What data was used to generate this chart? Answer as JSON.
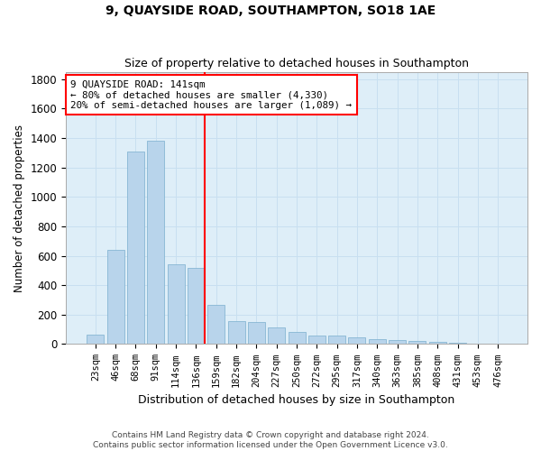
{
  "title": "9, QUAYSIDE ROAD, SOUTHAMPTON, SO18 1AE",
  "subtitle": "Size of property relative to detached houses in Southampton",
  "xlabel": "Distribution of detached houses by size in Southampton",
  "ylabel": "Number of detached properties",
  "categories": [
    "23sqm",
    "46sqm",
    "68sqm",
    "91sqm",
    "114sqm",
    "136sqm",
    "159sqm",
    "182sqm",
    "204sqm",
    "227sqm",
    "250sqm",
    "272sqm",
    "295sqm",
    "317sqm",
    "340sqm",
    "363sqm",
    "385sqm",
    "408sqm",
    "431sqm",
    "453sqm",
    "476sqm"
  ],
  "values": [
    62,
    640,
    1310,
    1380,
    540,
    520,
    265,
    155,
    150,
    115,
    80,
    60,
    55,
    45,
    35,
    25,
    20,
    18,
    10,
    5,
    5
  ],
  "bar_color": "#b8d4eb",
  "bar_edgecolor": "#7aaece",
  "grid_color": "#c8dff0",
  "bg_color": "#deeef8",
  "annotation_text": "9 QUAYSIDE ROAD: 141sqm\n← 80% of detached houses are smaller (4,330)\n20% of semi-detached houses are larger (1,089) →",
  "vline_bar_index": 5,
  "vline_right_edge": true,
  "ylim": [
    0,
    1850
  ],
  "yticks": [
    0,
    200,
    400,
    600,
    800,
    1000,
    1200,
    1400,
    1600,
    1800
  ],
  "footnote1": "Contains HM Land Registry data © Crown copyright and database right 2024.",
  "footnote2": "Contains public sector information licensed under the Open Government Licence v3.0."
}
